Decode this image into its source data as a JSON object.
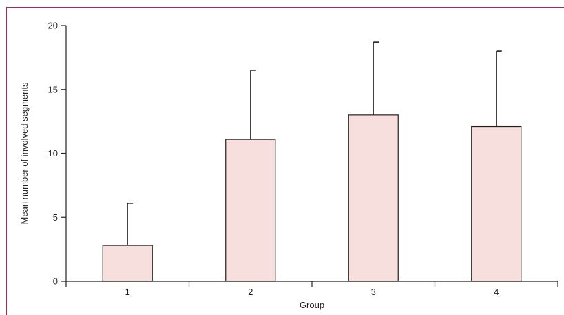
{
  "colors": {
    "frame": "#c2185b",
    "bar_fill": "#f7dfdd",
    "bar_stroke": "#231f20",
    "axis": "#231f20"
  },
  "chart_data": {
    "type": "bar",
    "xlabel": "Group",
    "ylabel": "Mean number of involved segments",
    "categories": [
      "1",
      "2",
      "3",
      "4"
    ],
    "values": [
      2.8,
      11.1,
      13.0,
      12.1
    ],
    "error_upper": [
      6.1,
      16.5,
      18.7,
      18.0
    ],
    "ylim": [
      0,
      20
    ],
    "yticks": [
      0,
      5,
      10,
      15,
      20
    ],
    "grid": false,
    "legend": "none"
  }
}
